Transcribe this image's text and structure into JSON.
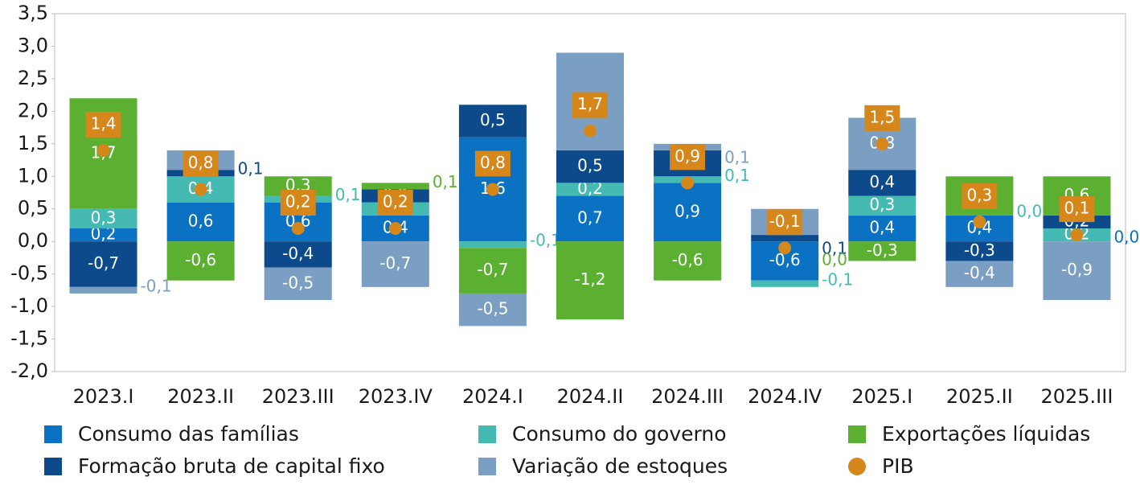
{
  "chart_data": {
    "type": "bar",
    "categories": [
      "2023.I",
      "2023.II",
      "2023.III",
      "2023.IV",
      "2024.I",
      "2024.II",
      "2024.III",
      "2024.IV",
      "2025.I",
      "2025.II",
      "2025.III"
    ],
    "ylim": [
      -2.0,
      3.5
    ],
    "yticks": [
      {
        "value": -2.0,
        "label": "-2,0"
      },
      {
        "value": -1.5,
        "label": "-1,5"
      },
      {
        "value": -1.0,
        "label": "-1,0"
      },
      {
        "value": -0.5,
        "label": "-0,5"
      },
      {
        "value": 0,
        "label": "0,0"
      },
      {
        "value": 0.5,
        "label": "0,5"
      },
      {
        "value": 1.0,
        "label": "1,0"
      },
      {
        "value": 1.5,
        "label": "1,5"
      },
      {
        "value": 2.0,
        "label": "2,0"
      },
      {
        "value": 2.5,
        "label": "2,5"
      },
      {
        "value": 3.0,
        "label": "3,0"
      },
      {
        "value": 3.5,
        "label": "3,5"
      }
    ],
    "series": [
      {
        "name": "Consumo das famílias",
        "color": "#0b71c2",
        "values": [
          0.2,
          0.6,
          0.6,
          0.4,
          1.6,
          0.7,
          0.9,
          -0.6,
          0.4,
          0.4,
          0.0
        ],
        "value_labels": [
          "0,2",
          "0,6",
          "0,6",
          "0,4",
          "1,6",
          "0,7",
          "0,9",
          "-0,6",
          "0,4",
          "0,4",
          "0,0"
        ]
      },
      {
        "name": "Consumo do governo",
        "color": "#45bab2",
        "values": [
          0.3,
          0.4,
          0.1,
          0.2,
          -0.1,
          0.2,
          0.1,
          -0.1,
          0.3,
          0.0,
          0.2
        ],
        "value_labels": [
          "0,3",
          "0,4",
          "0,1",
          "0,2",
          "-0,1",
          "0,2",
          "0,1",
          "-0,1",
          "0,3",
          "0,0",
          "0,2"
        ]
      },
      {
        "name": "Exportações líquidas",
        "color": "#5cb031",
        "values": [
          1.7,
          -0.6,
          0.3,
          0.1,
          -0.7,
          -1.2,
          -0.6,
          0.0,
          -0.3,
          0.6,
          0.6
        ],
        "value_labels": [
          "1,7",
          "-0,6",
          "0,3",
          "0,1",
          "-0,7",
          "-1,2",
          "-0,6",
          "0,0",
          "-0,3",
          "0,6",
          "0,6"
        ]
      },
      {
        "name": "Formação bruta de capital fixo",
        "color": "#0c4a8c",
        "values": [
          -0.7,
          0.1,
          -0.4,
          0.2,
          0.5,
          0.5,
          0.4,
          0.1,
          0.4,
          -0.3,
          0.2
        ],
        "value_labels": [
          "-0,7",
          "0,1",
          "-0,4",
          "0,2",
          "0,5",
          "0,5",
          "0,4",
          "0,1",
          "0,4",
          "-0,3",
          "0,2"
        ]
      },
      {
        "name": "Variação de estoques",
        "color": "#7a9fc2",
        "values": [
          -0.1,
          0.3,
          -0.5,
          -0.7,
          -0.5,
          1.5,
          0.1,
          0.4,
          0.8,
          -0.4,
          -0.9
        ],
        "value_labels": [
          "-0,1",
          "0,3",
          "-0,5",
          "-0,7",
          "-0,5",
          "1,5",
          "0,1",
          "0,4",
          "0,8",
          "-0,4",
          "-0,9"
        ]
      },
      {
        "name": "PIB",
        "color": "#d5871b",
        "values": [
          1.4,
          0.8,
          0.2,
          0.2,
          0.8,
          1.7,
          0.9,
          -0.1,
          1.5,
          0.3,
          0.1
        ],
        "value_labels": [
          "1,4",
          "0,8",
          "0,2",
          "0,2",
          "0,8",
          "1,7",
          "0,9",
          "-0,1",
          "1,5",
          "0,3",
          "0,1"
        ]
      }
    ]
  }
}
